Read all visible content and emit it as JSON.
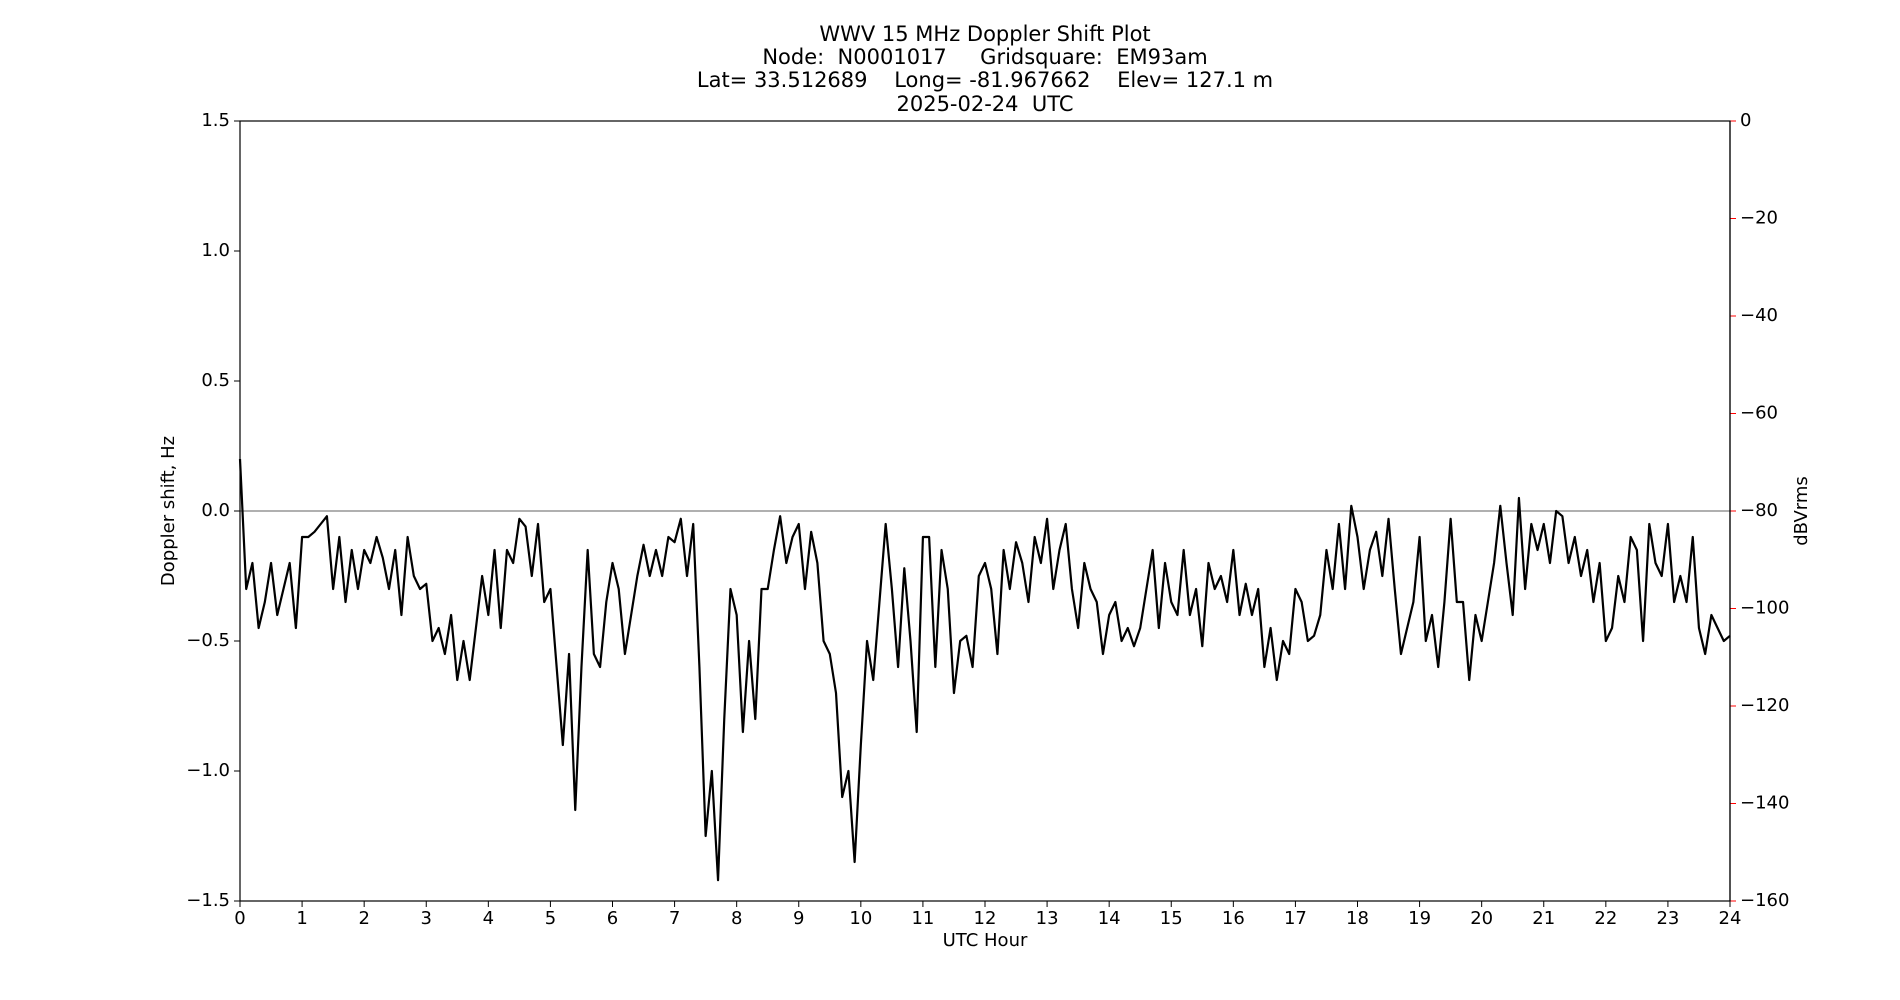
{
  "chart_data": {
    "type": "line",
    "title": "WWV 15 MHz Doppler Shift Plot",
    "subtitle": [
      "Node:  N0001017     Gridsquare:  EM93am",
      "Lat= 33.512689    Long= -81.967662    Elev= 127.1 m",
      "2025-02-24  UTC"
    ],
    "x_label": "UTC Hour",
    "y_label": "Doppler shift, Hz",
    "y2_label": "dBVrms",
    "y2_color": "#ff0000",
    "xlim": [
      0,
      24
    ],
    "xticks": [
      0,
      1,
      2,
      3,
      4,
      5,
      6,
      7,
      8,
      9,
      10,
      11,
      12,
      13,
      14,
      15,
      16,
      17,
      18,
      19,
      20,
      21,
      22,
      23,
      24
    ],
    "ylim": [
      -1.5,
      1.5
    ],
    "yticks": [
      {
        "value": -1.5,
        "label": "−1.5"
      },
      {
        "value": -1,
        "label": "−1.0"
      },
      {
        "value": -0.5,
        "label": "−0.5"
      },
      {
        "value": 0,
        "label": "0.0"
      },
      {
        "value": 0.5,
        "label": "0.5"
      },
      {
        "value": 1,
        "label": "1.0"
      },
      {
        "value": 1.5,
        "label": "1.5"
      }
    ],
    "y2lim": [
      -160,
      0
    ],
    "y2ticks": [
      {
        "value": -160,
        "label": "−160"
      },
      {
        "value": -140,
        "label": "−140"
      },
      {
        "value": -120,
        "label": "−120"
      },
      {
        "value": -100,
        "label": "−100"
      },
      {
        "value": -80,
        "label": "−80"
      },
      {
        "value": -60,
        "label": "−60"
      },
      {
        "value": -40,
        "label": "−40"
      },
      {
        "value": -20,
        "label": "−20"
      },
      0
    ],
    "reference_line": 0,
    "reference_line_color": "#808080",
    "x": [
      0,
      0.1,
      0.2,
      0.3,
      0.4,
      0.5,
      0.6,
      0.7,
      0.8,
      0.9,
      1,
      1.1,
      1.2,
      1.3,
      1.4,
      1.5,
      1.6,
      1.7,
      1.8,
      1.9,
      2,
      2.1,
      2.2,
      2.3,
      2.4,
      2.5,
      2.6,
      2.7,
      2.8,
      2.9,
      3,
      3.1,
      3.2,
      3.3,
      3.4,
      3.5,
      3.6,
      3.7,
      3.8,
      3.9,
      4,
      4.1,
      4.2,
      4.3,
      4.4,
      4.5,
      4.6,
      4.7,
      4.8,
      4.9,
      5,
      5.1,
      5.2,
      5.3,
      5.4,
      5.5,
      5.6,
      5.7,
      5.8,
      5.9,
      6,
      6.1,
      6.2,
      6.3,
      6.4,
      6.5,
      6.6,
      6.7,
      6.8,
      6.9,
      7,
      7.1,
      7.2,
      7.3,
      7.4,
      7.5,
      7.6,
      7.7,
      7.8,
      7.9,
      8,
      8.1,
      8.2,
      8.3,
      8.4,
      8.5,
      8.6,
      8.7,
      8.8,
      8.9,
      9,
      9.1,
      9.2,
      9.3,
      9.4,
      9.5,
      9.6,
      9.7,
      9.8,
      9.9,
      10,
      10.1,
      10.2,
      10.3,
      10.4,
      10.5,
      10.6,
      10.7,
      10.8,
      10.9,
      11,
      11.1,
      11.2,
      11.3,
      11.4,
      11.5,
      11.6,
      11.7,
      11.8,
      11.9,
      12,
      12.1,
      12.2,
      12.3,
      12.4,
      12.5,
      12.6,
      12.7,
      12.8,
      12.9,
      13,
      13.1,
      13.2,
      13.3,
      13.4,
      13.5,
      13.6,
      13.7,
      13.8,
      13.9,
      14,
      14.1,
      14.2,
      14.3,
      14.4,
      14.5,
      14.6,
      14.7,
      14.8,
      14.9,
      15,
      15.1,
      15.2,
      15.3,
      15.4,
      15.5,
      15.6,
      15.7,
      15.8,
      15.9,
      16,
      16.1,
      16.2,
      16.3,
      16.4,
      16.5,
      16.6,
      16.7,
      16.8,
      16.9,
      17,
      17.1,
      17.2,
      17.3,
      17.4,
      17.5,
      17.6,
      17.7,
      17.8,
      17.9,
      18,
      18.1,
      18.2,
      18.3,
      18.4,
      18.5,
      18.6,
      18.7,
      18.8,
      18.9,
      19,
      19.1,
      19.2,
      19.3,
      19.4,
      19.5,
      19.6,
      19.7,
      19.8,
      19.9,
      20,
      20.1,
      20.2,
      20.3,
      20.4,
      20.5,
      20.6,
      20.7,
      20.8,
      20.9,
      21,
      21.1,
      21.2,
      21.3,
      21.4,
      21.5,
      21.6,
      21.7,
      21.8,
      21.9,
      22,
      22.1,
      22.2,
      22.3,
      22.4,
      22.5,
      22.6,
      22.7,
      22.8,
      22.9,
      23,
      23.1,
      23.2,
      23.3,
      23.4,
      23.5,
      23.6,
      23.7,
      23.8,
      23.9,
      24
    ],
    "series": [
      {
        "name": "Doppler shift",
        "color": "#000000",
        "values": [
          0.2,
          -0.3,
          -0.2,
          -0.45,
          -0.35,
          -0.2,
          -0.4,
          -0.3,
          -0.2,
          -0.45,
          -0.1,
          -0.1,
          -0.08,
          -0.05,
          -0.02,
          -0.3,
          -0.1,
          -0.35,
          -0.15,
          -0.3,
          -0.15,
          -0.2,
          -0.1,
          -0.18,
          -0.3,
          -0.15,
          -0.4,
          -0.1,
          -0.25,
          -0.3,
          -0.28,
          -0.5,
          -0.45,
          -0.55,
          -0.4,
          -0.65,
          -0.5,
          -0.65,
          -0.45,
          -0.25,
          -0.4,
          -0.15,
          -0.45,
          -0.15,
          -0.2,
          -0.03,
          -0.06,
          -0.25,
          -0.05,
          -0.35,
          -0.3,
          -0.6,
          -0.9,
          -0.55,
          -1.15,
          -0.6,
          -0.15,
          -0.55,
          -0.6,
          -0.35,
          -0.2,
          -0.3,
          -0.55,
          -0.4,
          -0.25,
          -0.13,
          -0.25,
          -0.15,
          -0.25,
          -0.1,
          -0.12,
          -0.03,
          -0.25,
          -0.05,
          -0.6,
          -1.25,
          -1,
          -1.42,
          -0.8,
          -0.3,
          -0.4,
          -0.85,
          -0.5,
          -0.8,
          -0.3,
          -0.3,
          -0.15,
          -0.02,
          -0.2,
          -0.1,
          -0.05,
          -0.3,
          -0.08,
          -0.2,
          -0.5,
          -0.55,
          -0.7,
          -1.1,
          -1,
          -1.35,
          -0.9,
          -0.5,
          -0.65,
          -0.35,
          -0.05,
          -0.3,
          -0.6,
          -0.22,
          -0.5,
          -0.85,
          -0.1,
          -0.1,
          -0.6,
          -0.15,
          -0.3,
          -0.7,
          -0.5,
          -0.48,
          -0.6,
          -0.25,
          -0.2,
          -0.3,
          -0.55,
          -0.15,
          -0.3,
          -0.12,
          -0.2,
          -0.35,
          -0.1,
          -0.2,
          -0.03,
          -0.3,
          -0.15,
          -0.05,
          -0.3,
          -0.45,
          -0.2,
          -0.3,
          -0.35,
          -0.55,
          -0.4,
          -0.35,
          -0.5,
          -0.45,
          -0.52,
          -0.45,
          -0.3,
          -0.15,
          -0.45,
          -0.2,
          -0.35,
          -0.4,
          -0.15,
          -0.4,
          -0.3,
          -0.52,
          -0.2,
          -0.3,
          -0.25,
          -0.35,
          -0.15,
          -0.4,
          -0.28,
          -0.4,
          -0.3,
          -0.6,
          -0.45,
          -0.65,
          -0.5,
          -0.55,
          -0.3,
          -0.35,
          -0.5,
          -0.48,
          -0.4,
          -0.15,
          -0.3,
          -0.05,
          -0.3,
          0.02,
          -0.1,
          -0.3,
          -0.15,
          -0.08,
          -0.25,
          -0.03,
          -0.3,
          -0.55,
          -0.45,
          -0.35,
          -0.1,
          -0.5,
          -0.4,
          -0.6,
          -0.35,
          -0.03,
          -0.35,
          -0.35,
          -0.65,
          -0.4,
          -0.5,
          -0.35,
          -0.2,
          0.02,
          -0.2,
          -0.4,
          0.05,
          -0.3,
          -0.05,
          -0.15,
          -0.05,
          -0.2,
          0,
          -0.02,
          -0.2,
          -0.1,
          -0.25,
          -0.15,
          -0.35,
          -0.2,
          -0.5,
          -0.45,
          -0.25,
          -0.35,
          -0.1,
          -0.15,
          -0.5,
          -0.05,
          -0.2,
          -0.25,
          -0.05,
          -0.35,
          -0.25,
          -0.35,
          -0.1,
          -0.45,
          -0.55,
          -0.4,
          -0.45,
          -0.5,
          -0.48
        ]
      }
    ]
  }
}
